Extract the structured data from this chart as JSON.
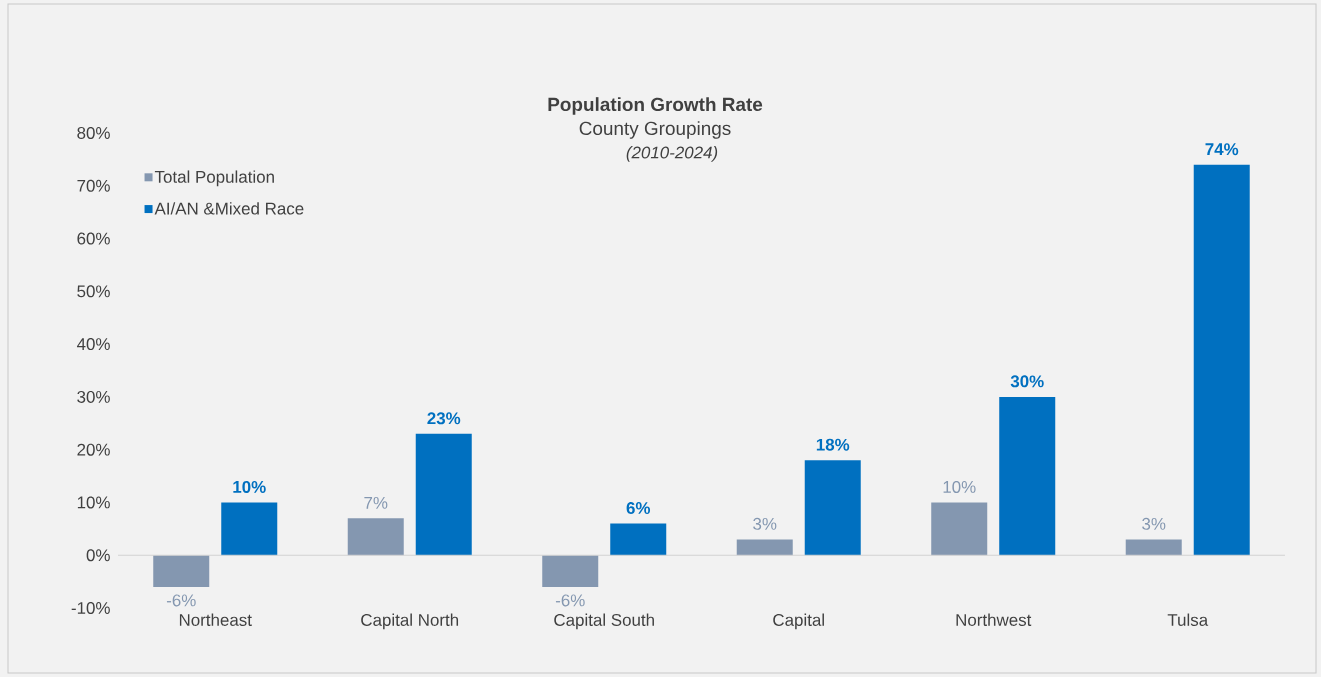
{
  "chart_data": {
    "type": "bar",
    "title": "Population Growth Rate",
    "subtitle": "County Groupings",
    "annotations": [
      "(2010-2024)"
    ],
    "categories": [
      "Northeast",
      "Capital North",
      "Capital South",
      "Capital",
      "Northwest",
      "Tulsa"
    ],
    "series": [
      {
        "name": "Total Population",
        "color": "#8497b0",
        "values": [
          -6,
          7,
          -6,
          3,
          10,
          3
        ],
        "value_labels": [
          "-6%",
          "7%",
          "-6%",
          "3%",
          "10%",
          "3%"
        ]
      },
      {
        "name": "AI/AN &Mixed Race",
        "color": "#0070c0",
        "values": [
          10,
          23,
          6,
          18,
          30,
          74
        ],
        "value_labels": [
          "10%",
          "23%",
          "6%",
          "18%",
          "30%",
          "74%"
        ]
      }
    ],
    "ylim": [
      -10,
      80
    ],
    "yticks": [
      {
        "value": -10,
        "label": "-10%"
      },
      {
        "value": 0,
        "label": "0%"
      },
      {
        "value": 10,
        "label": "10%"
      },
      {
        "value": 20,
        "label": "20%"
      },
      {
        "value": 30,
        "label": "30%"
      },
      {
        "value": 40,
        "label": "40%"
      },
      {
        "value": 50,
        "label": "50%"
      },
      {
        "value": 60,
        "label": "60%"
      },
      {
        "value": 70,
        "label": "70%"
      },
      {
        "value": 80,
        "label": "80%"
      }
    ],
    "legend": "top left"
  }
}
